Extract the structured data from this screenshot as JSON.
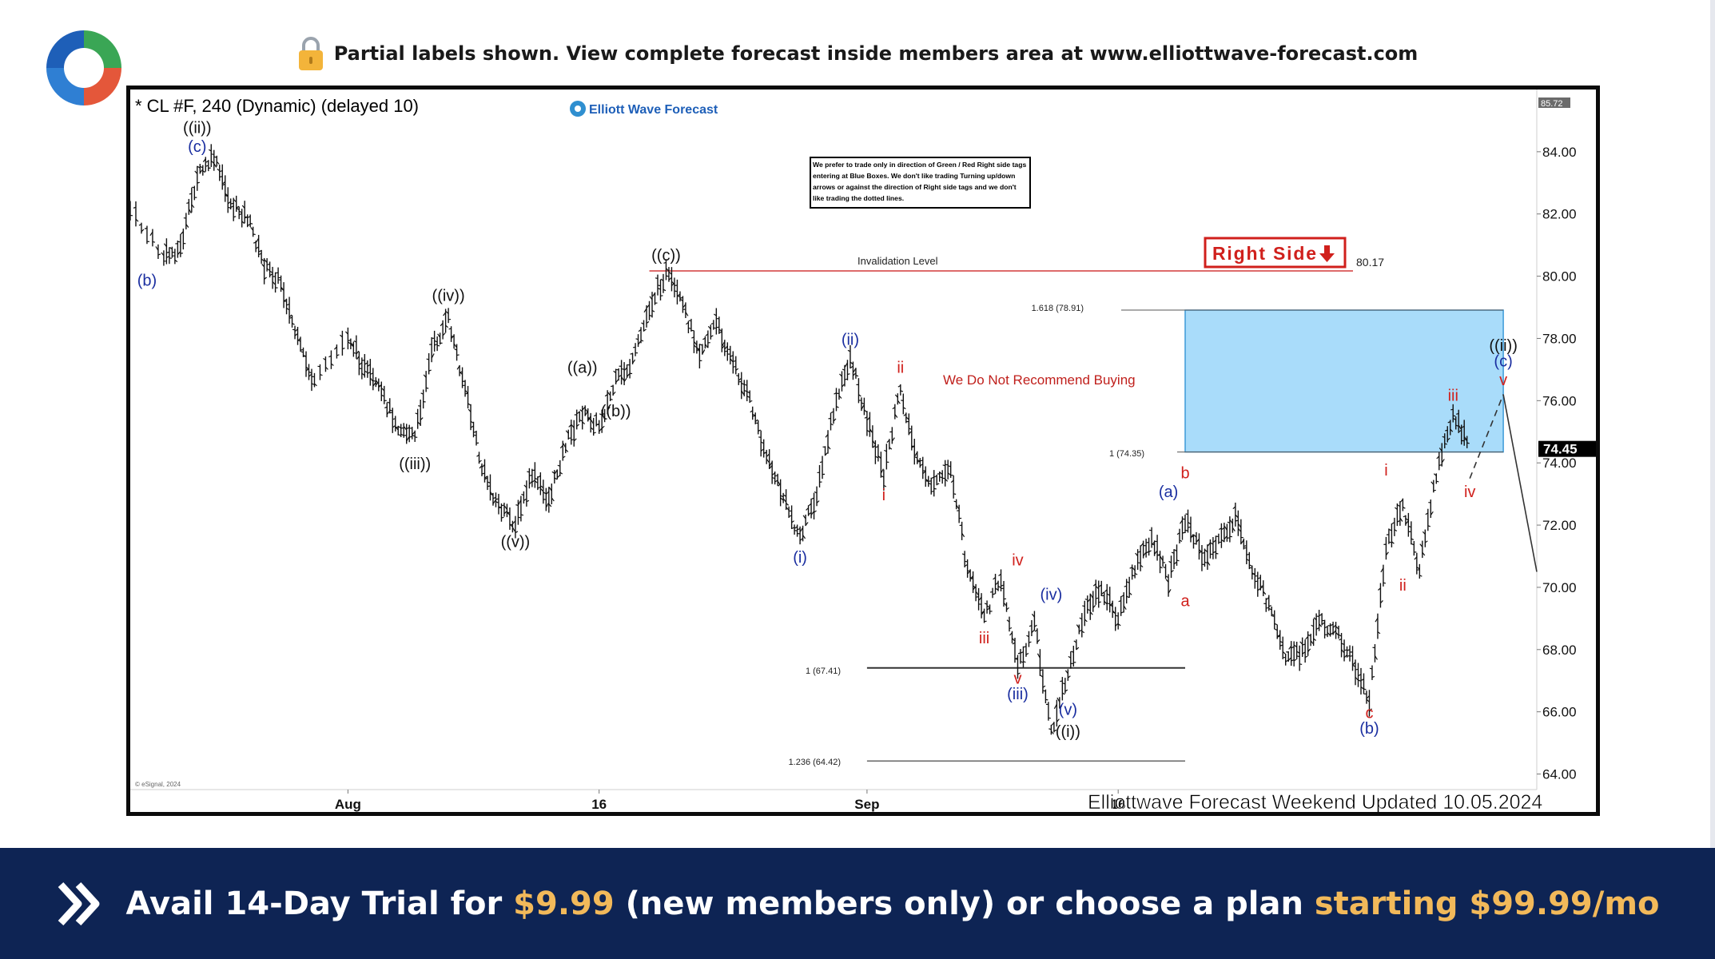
{
  "banner": {
    "text": "Partial labels shown. View complete forecast inside members area at www.elliottwave-forecast.com",
    "icon": "lock-icon"
  },
  "footer": {
    "cta_prefix": "Avail 14-Day Trial for ",
    "cta_price": "$9.99",
    "cta_middle": " (new members only) or choose a plan ",
    "cta_plan": "starting $99.99/mo",
    "icon": "double-chevron-right-icon"
  },
  "colors": {
    "footer_bg": "#0e2454",
    "accent_gold": "#f2b95a",
    "blue_box": "#a9dcfa",
    "wave_blue": "#1a2ea0",
    "wave_red": "#d0201c",
    "invalidation_line": "#d23a3a"
  },
  "chart_data": {
    "type": "candlestick",
    "title": "* CL #F, 240 (Dynamic) (delayed 10)",
    "brand": "Elliott Wave Forecast",
    "source": "© eSignal, 2024",
    "footer_label": "Elliottwave Forecast Weekend Updated 10.05.2024",
    "note": "We prefer to trade only in direction of Green / Red Right side tags entering at Blue Boxes. We don't like trading Turning up/down arrows or against the direction of Right side tags and we don't like trading the dotted lines.",
    "right_side_tag": "Right Side",
    "no_buy_text": "We Do Not Recommend Buying",
    "invalidation": {
      "label": "Invalidation Level",
      "value": 80.17,
      "value_label": "80.17"
    },
    "ylim": [
      63.5,
      86
    ],
    "y_ticks": [
      64,
      66,
      68,
      70,
      72,
      74,
      76,
      78,
      80,
      82,
      84
    ],
    "y_tick_labels": [
      "64.00",
      "66.00",
      "68.00",
      "70.00",
      "72.00",
      "74.00",
      "76.00",
      "78.00",
      "80.00",
      "82.00",
      "84.00"
    ],
    "x_range": [
      "2024-07-19",
      "2024-10-11"
    ],
    "x_ticks": [
      {
        "date": "2024-08-01",
        "label": "Aug"
      },
      {
        "date": "2024-08-16",
        "label": "16"
      },
      {
        "date": "2024-09-01",
        "label": "Sep"
      },
      {
        "date": "2024-09-16",
        "label": "16"
      }
    ],
    "top_price": "85.72",
    "last_price": {
      "value": 74.45,
      "label": "74.45"
    },
    "blue_box": {
      "x": [
        "2024-09-20",
        "2024-10-09"
      ],
      "low": 74.35,
      "high": 78.91,
      "low_label": "1 (74.35)",
      "high_label": "1.618 (78.91)"
    },
    "fib_levels": [
      {
        "value": 67.41,
        "label": "1 (67.41)",
        "x": [
          "2024-09-01",
          "2024-09-20"
        ]
      },
      {
        "value": 64.42,
        "label": "1.236 (64.42)",
        "x": [
          "2024-09-01",
          "2024-09-20"
        ]
      }
    ],
    "price_path": [
      [
        "2024-07-19",
        82.1
      ],
      [
        "2024-07-21",
        80.6
      ],
      [
        "2024-07-22",
        80.9
      ],
      [
        "2024-07-23",
        83.2
      ],
      [
        "2024-07-24",
        83.8
      ],
      [
        "2024-07-25",
        82.3
      ],
      [
        "2024-07-26",
        81.9
      ],
      [
        "2024-07-27",
        80.3
      ],
      [
        "2024-07-28",
        79.8
      ],
      [
        "2024-07-29",
        77.9
      ],
      [
        "2024-07-30",
        76.5
      ],
      [
        "2024-08-01",
        78.1
      ],
      [
        "2024-08-02",
        77.0
      ],
      [
        "2024-08-03",
        76.2
      ],
      [
        "2024-08-04",
        75.2
      ],
      [
        "2024-08-05",
        74.8
      ],
      [
        "2024-08-06",
        77.6
      ],
      [
        "2024-08-07",
        78.6
      ],
      [
        "2024-08-08",
        76.4
      ],
      [
        "2024-08-09",
        73.8
      ],
      [
        "2024-08-10",
        72.6
      ],
      [
        "2024-08-11",
        72.0
      ],
      [
        "2024-08-12",
        73.6
      ],
      [
        "2024-08-13",
        72.8
      ],
      [
        "2024-08-14",
        74.6
      ],
      [
        "2024-08-15",
        75.6
      ],
      [
        "2024-08-16",
        75.2
      ],
      [
        "2024-08-17",
        76.6
      ],
      [
        "2024-08-18",
        77.2
      ],
      [
        "2024-08-19",
        79.0
      ],
      [
        "2024-08-20",
        80.1
      ],
      [
        "2024-08-21",
        79.0
      ],
      [
        "2024-08-22",
        77.6
      ],
      [
        "2024-08-23",
        78.5
      ],
      [
        "2024-08-24",
        77.2
      ],
      [
        "2024-08-25",
        76.0
      ],
      [
        "2024-08-26",
        74.2
      ],
      [
        "2024-08-27",
        72.9
      ],
      [
        "2024-08-28",
        71.6
      ],
      [
        "2024-08-29",
        73.0
      ],
      [
        "2024-08-30",
        75.6
      ],
      [
        "2024-08-31",
        77.4
      ],
      [
        "2024-09-01",
        75.4
      ],
      [
        "2024-09-02",
        73.6
      ],
      [
        "2024-09-03",
        76.4
      ],
      [
        "2024-09-04",
        74.0
      ],
      [
        "2024-09-05",
        73.2
      ],
      [
        "2024-09-06",
        73.9
      ],
      [
        "2024-09-07",
        70.5
      ],
      [
        "2024-09-08",
        69.0
      ],
      [
        "2024-09-09",
        70.4
      ],
      [
        "2024-09-10",
        67.4
      ],
      [
        "2024-09-11",
        68.9
      ],
      [
        "2024-09-12",
        65.3
      ],
      [
        "2024-09-13",
        67.2
      ],
      [
        "2024-09-14",
        69.2
      ],
      [
        "2024-09-15",
        69.9
      ],
      [
        "2024-09-16",
        69.0
      ],
      [
        "2024-09-17",
        70.6
      ],
      [
        "2024-09-18",
        71.6
      ],
      [
        "2024-09-19",
        70.2
      ],
      [
        "2024-09-20",
        72.2
      ],
      [
        "2024-09-21",
        71.0
      ],
      [
        "2024-09-22",
        71.4
      ],
      [
        "2024-09-23",
        72.2
      ],
      [
        "2024-09-24",
        70.6
      ],
      [
        "2024-09-25",
        69.4
      ],
      [
        "2024-09-26",
        67.6
      ],
      [
        "2024-09-27",
        67.9
      ],
      [
        "2024-09-28",
        68.9
      ],
      [
        "2024-09-29",
        68.6
      ],
      [
        "2024-09-30",
        67.6
      ],
      [
        "2024-10-01",
        66.3
      ],
      [
        "2024-10-02",
        71.3
      ],
      [
        "2024-10-03",
        72.6
      ],
      [
        "2024-10-04",
        70.6
      ],
      [
        "2024-10-05",
        73.6
      ],
      [
        "2024-10-06",
        75.6
      ],
      [
        "2024-10-07",
        74.4
      ]
    ],
    "projection": {
      "dashed": [
        [
          "2024-10-07",
          73.5
        ],
        [
          "2024-10-09",
          76.2
        ]
      ],
      "solid": [
        [
          "2024-10-09",
          76.2
        ],
        [
          "2024-10-11",
          70.5
        ]
      ]
    },
    "wave_labels": [
      {
        "text": "((ii))",
        "date": "2024-07-23",
        "price": 84.6,
        "color": "black"
      },
      {
        "text": "(c)",
        "date": "2024-07-23",
        "price": 84.0,
        "color": "blue"
      },
      {
        "text": "(b)",
        "date": "2024-07-20",
        "price": 79.7,
        "color": "blue"
      },
      {
        "text": "((iv))",
        "date": "2024-08-07",
        "price": 79.2,
        "color": "black"
      },
      {
        "text": "((iii))",
        "date": "2024-08-05",
        "price": 73.8,
        "color": "black"
      },
      {
        "text": "((v))",
        "date": "2024-08-11",
        "price": 71.3,
        "color": "black"
      },
      {
        "text": "((a))",
        "date": "2024-08-15",
        "price": 76.9,
        "color": "black"
      },
      {
        "text": "((b))",
        "date": "2024-08-17",
        "price": 75.5,
        "color": "black"
      },
      {
        "text": "((c))",
        "date": "2024-08-20",
        "price": 80.5,
        "color": "black"
      },
      {
        "text": "(i)",
        "date": "2024-08-28",
        "price": 70.8,
        "color": "blue"
      },
      {
        "text": "(ii)",
        "date": "2024-08-31",
        "price": 77.8,
        "color": "blue"
      },
      {
        "text": "ii",
        "date": "2024-09-03",
        "price": 76.9,
        "color": "red"
      },
      {
        "text": "i",
        "date": "2024-09-02",
        "price": 72.8,
        "color": "red"
      },
      {
        "text": "iv",
        "date": "2024-09-10",
        "price": 70.7,
        "color": "red"
      },
      {
        "text": "iii",
        "date": "2024-09-08",
        "price": 68.2,
        "color": "red"
      },
      {
        "text": "(iv)",
        "date": "2024-09-12",
        "price": 69.6,
        "color": "blue"
      },
      {
        "text": "v",
        "date": "2024-09-10",
        "price": 66.9,
        "color": "red"
      },
      {
        "text": "(iii)",
        "date": "2024-09-10",
        "price": 66.4,
        "color": "blue"
      },
      {
        "text": "(v)",
        "date": "2024-09-13",
        "price": 65.9,
        "color": "blue"
      },
      {
        "text": "((i))",
        "date": "2024-09-13",
        "price": 65.2,
        "color": "black"
      },
      {
        "text": "(a)",
        "date": "2024-09-19",
        "price": 72.9,
        "color": "blue"
      },
      {
        "text": "b",
        "date": "2024-09-20",
        "price": 73.5,
        "color": "red"
      },
      {
        "text": "a",
        "date": "2024-09-20",
        "price": 69.4,
        "color": "red"
      },
      {
        "text": "c",
        "date": "2024-10-01",
        "price": 65.8,
        "color": "red"
      },
      {
        "text": "(b)",
        "date": "2024-10-01",
        "price": 65.3,
        "color": "blue"
      },
      {
        "text": "i",
        "date": "2024-10-02",
        "price": 73.6,
        "color": "red"
      },
      {
        "text": "ii",
        "date": "2024-10-03",
        "price": 69.9,
        "color": "red"
      },
      {
        "text": "iii",
        "date": "2024-10-06",
        "price": 76.0,
        "color": "red"
      },
      {
        "text": "iv",
        "date": "2024-10-07",
        "price": 72.9,
        "color": "red"
      },
      {
        "text": "((ii))",
        "date": "2024-10-09",
        "price": 77.6,
        "color": "black"
      },
      {
        "text": "(c)",
        "date": "2024-10-09",
        "price": 77.1,
        "color": "blue"
      },
      {
        "text": "v",
        "date": "2024-10-09",
        "price": 76.5,
        "color": "red"
      }
    ]
  }
}
